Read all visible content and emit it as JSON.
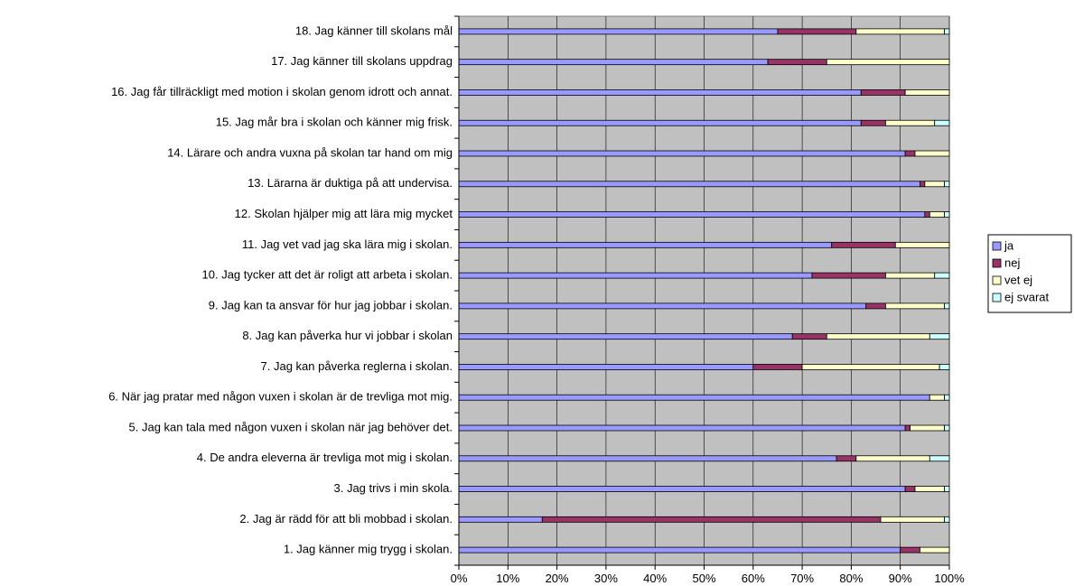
{
  "chart_data": {
    "type": "bar",
    "orientation": "horizontal",
    "stacked": "percent",
    "xlim": [
      0,
      100
    ],
    "x_ticks": [
      "0%",
      "10%",
      "20%",
      "30%",
      "40%",
      "50%",
      "60%",
      "70%",
      "80%",
      "90%",
      "100%"
    ],
    "grid": true,
    "legend_position": "right",
    "categories": [
      "1. Jag känner mig trygg i skolan.",
      "2. Jag är rädd för att bli mobbad i skolan.",
      "3. Jag trivs i min skola.",
      "4. De andra eleverna är trevliga mot mig i skolan.",
      "5. Jag kan tala med någon vuxen i skolan när jag behöver det.",
      "6. När jag pratar med någon vuxen i skolan är de trevliga mot mig.",
      "7. Jag kan påverka reglerna i skolan.",
      "8. Jag kan påverka hur vi jobbar i skolan",
      "9. Jag kan ta ansvar för hur jag jobbar i skolan.",
      "10. Jag tycker att det är roligt att arbeta i skolan.",
      "11. Jag vet vad jag ska lära mig i skolan.",
      "12. Skolan hjälper mig att lära mig mycket",
      "13. Lärarna är duktiga på att undervisa.",
      "14. Lärare och andra vuxna på skolan tar hand om mig",
      "15. Jag mår bra i skolan och känner mig frisk.",
      "16. Jag får tillräckligt med motion i skolan genom idrott och annat.",
      "17. Jag känner till skolans uppdrag",
      "18. Jag känner till skolans mål"
    ],
    "series": [
      {
        "name": "ja",
        "color": "#9999ff",
        "values": [
          90,
          17,
          91,
          77,
          91,
          96,
          60,
          68,
          83,
          72,
          76,
          95,
          94,
          91,
          82,
          82,
          63,
          65
        ]
      },
      {
        "name": "nej",
        "color": "#993366",
        "values": [
          4,
          69,
          2,
          4,
          1,
          0,
          10,
          7,
          4,
          15,
          13,
          1,
          1,
          2,
          5,
          9,
          12,
          16
        ]
      },
      {
        "name": "vet ej",
        "color": "#ffffcc",
        "values": [
          6,
          13,
          6,
          15,
          7,
          3,
          28,
          21,
          12,
          10,
          11,
          3,
          4,
          7,
          10,
          9,
          25,
          18
        ]
      },
      {
        "name": "ej svarat",
        "color": "#ccffff",
        "values": [
          0,
          1,
          1,
          4,
          1,
          1,
          2,
          4,
          1,
          3,
          0,
          1,
          1,
          0,
          3,
          0,
          0,
          1
        ]
      }
    ],
    "plot_background": "#c0c0c0",
    "grid_color": "#000000"
  }
}
